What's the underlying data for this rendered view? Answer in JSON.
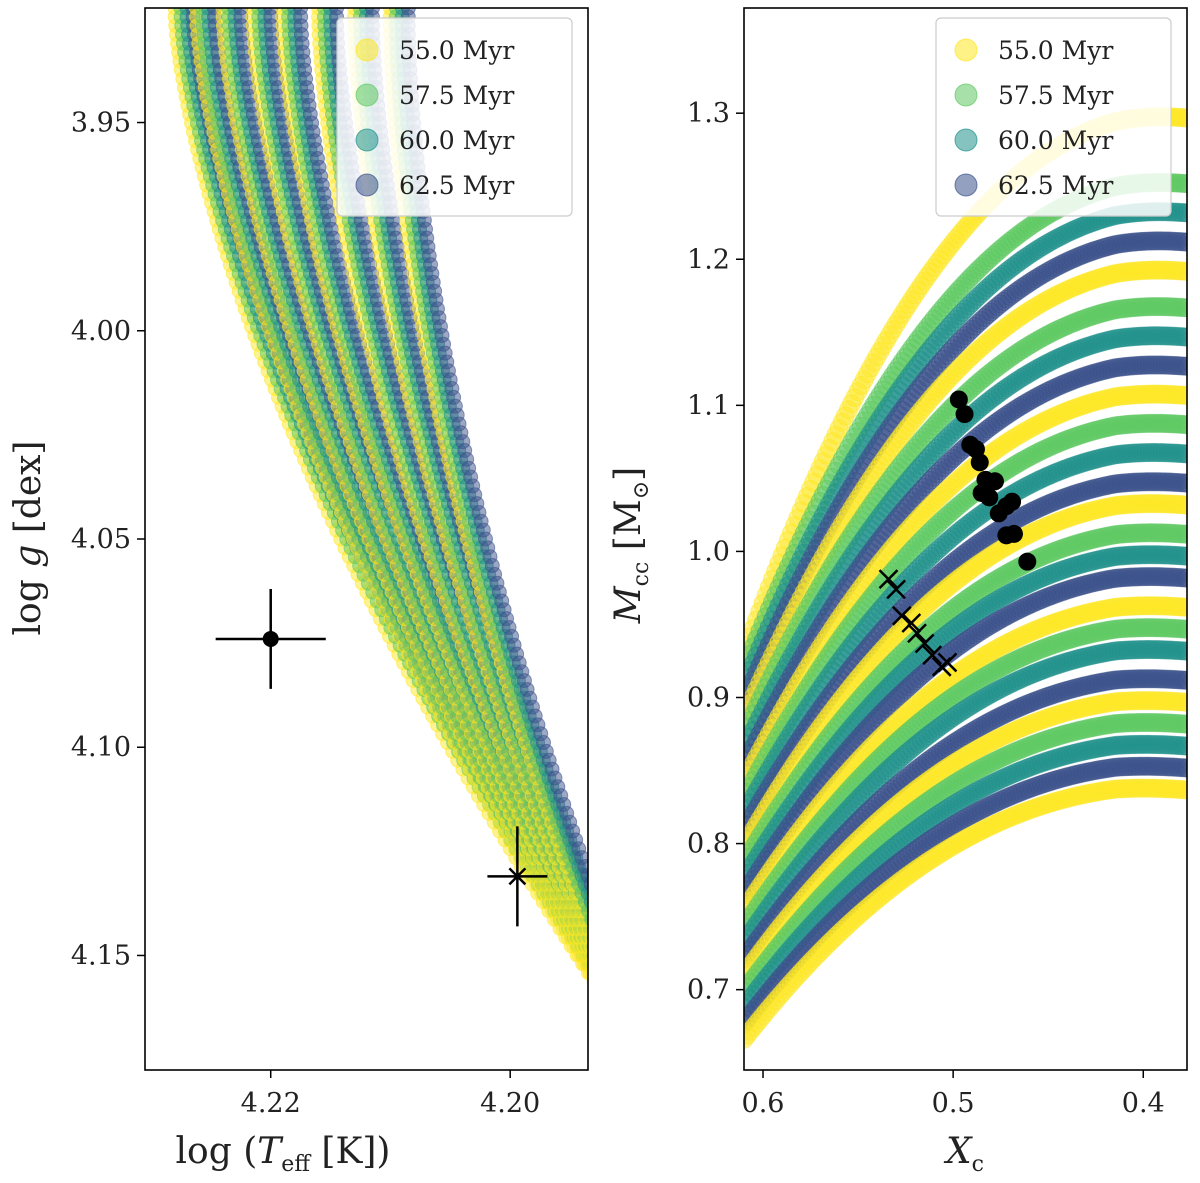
{
  "chart_data": [
    {
      "type": "scatter",
      "panel": "left",
      "xlabel": "log (T_eff [K])",
      "ylabel": "log g [dex]",
      "xlim": [
        4.2305,
        4.1935
      ],
      "ylim": [
        4.1775,
        3.9225
      ],
      "y_inverted": true,
      "x_inverted": true,
      "x_ticks": [
        4.22,
        4.2
      ],
      "y_ticks": [
        3.95,
        4.0,
        4.05,
        4.1,
        4.15
      ],
      "x_tick_labels": [
        "4.22",
        "4.20"
      ],
      "y_tick_labels": [
        "3.95",
        "4.00",
        "4.05",
        "4.10",
        "4.15"
      ],
      "legend_position": "top-right",
      "series": [
        {
          "name": "55.0 Myr",
          "color": "#fde725"
        },
        {
          "name": "57.5 Myr",
          "color": "#5ec962"
        },
        {
          "name": "60.0 Myr",
          "color": "#21918c"
        },
        {
          "name": "62.5 Myr",
          "color": "#3b528b"
        }
      ],
      "observations": [
        {
          "marker": "circle",
          "x": 4.22,
          "y": 4.074,
          "xerr": 0.0046,
          "yerr": 0.004
        },
        {
          "marker": "x-cross",
          "x": 4.1994,
          "y": 4.131,
          "xerr": 0.0025,
          "yerr": 0.004
        }
      ]
    },
    {
      "type": "scatter",
      "panel": "right",
      "xlabel": "X_c",
      "ylabel": "M_cc [M_⊙]",
      "xlim": [
        0.61,
        0.377
      ],
      "ylim": [
        0.645,
        1.372
      ],
      "x_inverted": true,
      "x_ticks": [
        0.6,
        0.5,
        0.4
      ],
      "y_ticks": [
        0.7,
        0.8,
        0.9,
        1.0,
        1.1,
        1.2,
        1.3
      ],
      "x_tick_labels": [
        "0.6",
        "0.5",
        "0.4"
      ],
      "y_tick_labels": [
        "0.7",
        "0.8",
        "0.9",
        "1.0",
        "1.1",
        "1.2",
        "1.3"
      ],
      "legend_position": "top-right",
      "series": [
        {
          "name": "55.0 Myr",
          "color": "#fde725"
        },
        {
          "name": "57.5 Myr",
          "color": "#5ec962"
        },
        {
          "name": "60.0 Myr",
          "color": "#21918c"
        },
        {
          "name": "62.5 Myr",
          "color": "#3b528b"
        }
      ],
      "observations_circle": [
        [
          0.497,
          1.104
        ],
        [
          0.494,
          1.094
        ],
        [
          0.491,
          1.073
        ],
        [
          0.488,
          1.07
        ],
        [
          0.486,
          1.061
        ],
        [
          0.483,
          1.049
        ],
        [
          0.481,
          1.037
        ],
        [
          0.485,
          1.04
        ],
        [
          0.478,
          1.048
        ],
        [
          0.476,
          1.026
        ],
        [
          0.472,
          1.031
        ],
        [
          0.469,
          1.034
        ],
        [
          0.472,
          1.011
        ],
        [
          0.468,
          1.012
        ],
        [
          0.461,
          0.993
        ]
      ],
      "observations_cross": [
        [
          0.534,
          0.981
        ],
        [
          0.53,
          0.974
        ],
        [
          0.527,
          0.956
        ],
        [
          0.522,
          0.951
        ],
        [
          0.519,
          0.944
        ],
        [
          0.515,
          0.937
        ],
        [
          0.511,
          0.929
        ],
        [
          0.506,
          0.921
        ],
        [
          0.503,
          0.924
        ]
      ]
    }
  ]
}
